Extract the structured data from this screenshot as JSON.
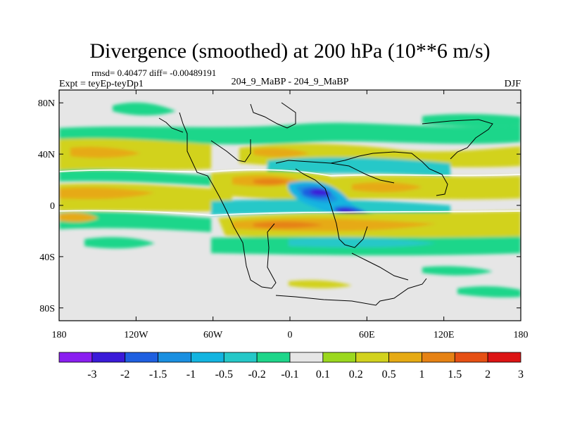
{
  "chart_data": {
    "type": "heatmap",
    "title": "Divergence (smoothed) at 200 hPa (10**6 m/s)",
    "stats_line": "rmsd= 0.40477 diff= -0.00489191",
    "left_label": "Expt = teyEp-teyDp1",
    "center_label": "204_9_MaBP - 204_9_MaBP",
    "right_label": "DJF",
    "x_ticks": [
      "180",
      "120W",
      "60W",
      "0",
      "60E",
      "120E",
      "180"
    ],
    "y_ticks": [
      "80N",
      "40N",
      "0",
      "40S",
      "80S"
    ],
    "x_range": [
      -180,
      180
    ],
    "y_range": [
      -90,
      90
    ],
    "colorbar": {
      "labels": [
        "-3",
        "-2",
        "-1.5",
        "-1",
        "-0.5",
        "-0.2",
        "-0.1",
        "0.1",
        "0.2",
        "0.5",
        "1",
        "1.5",
        "2",
        "3"
      ],
      "colors": [
        "#8a1ef0",
        "#3a1ad8",
        "#1e5fe0",
        "#1a8fe0",
        "#13b4e0",
        "#25c8c8",
        "#1ed68a",
        "#e6e6e6",
        "#9bd81e",
        "#d2d21e",
        "#e6aa14",
        "#e68214",
        "#e65014",
        "#dc1414"
      ]
    }
  }
}
